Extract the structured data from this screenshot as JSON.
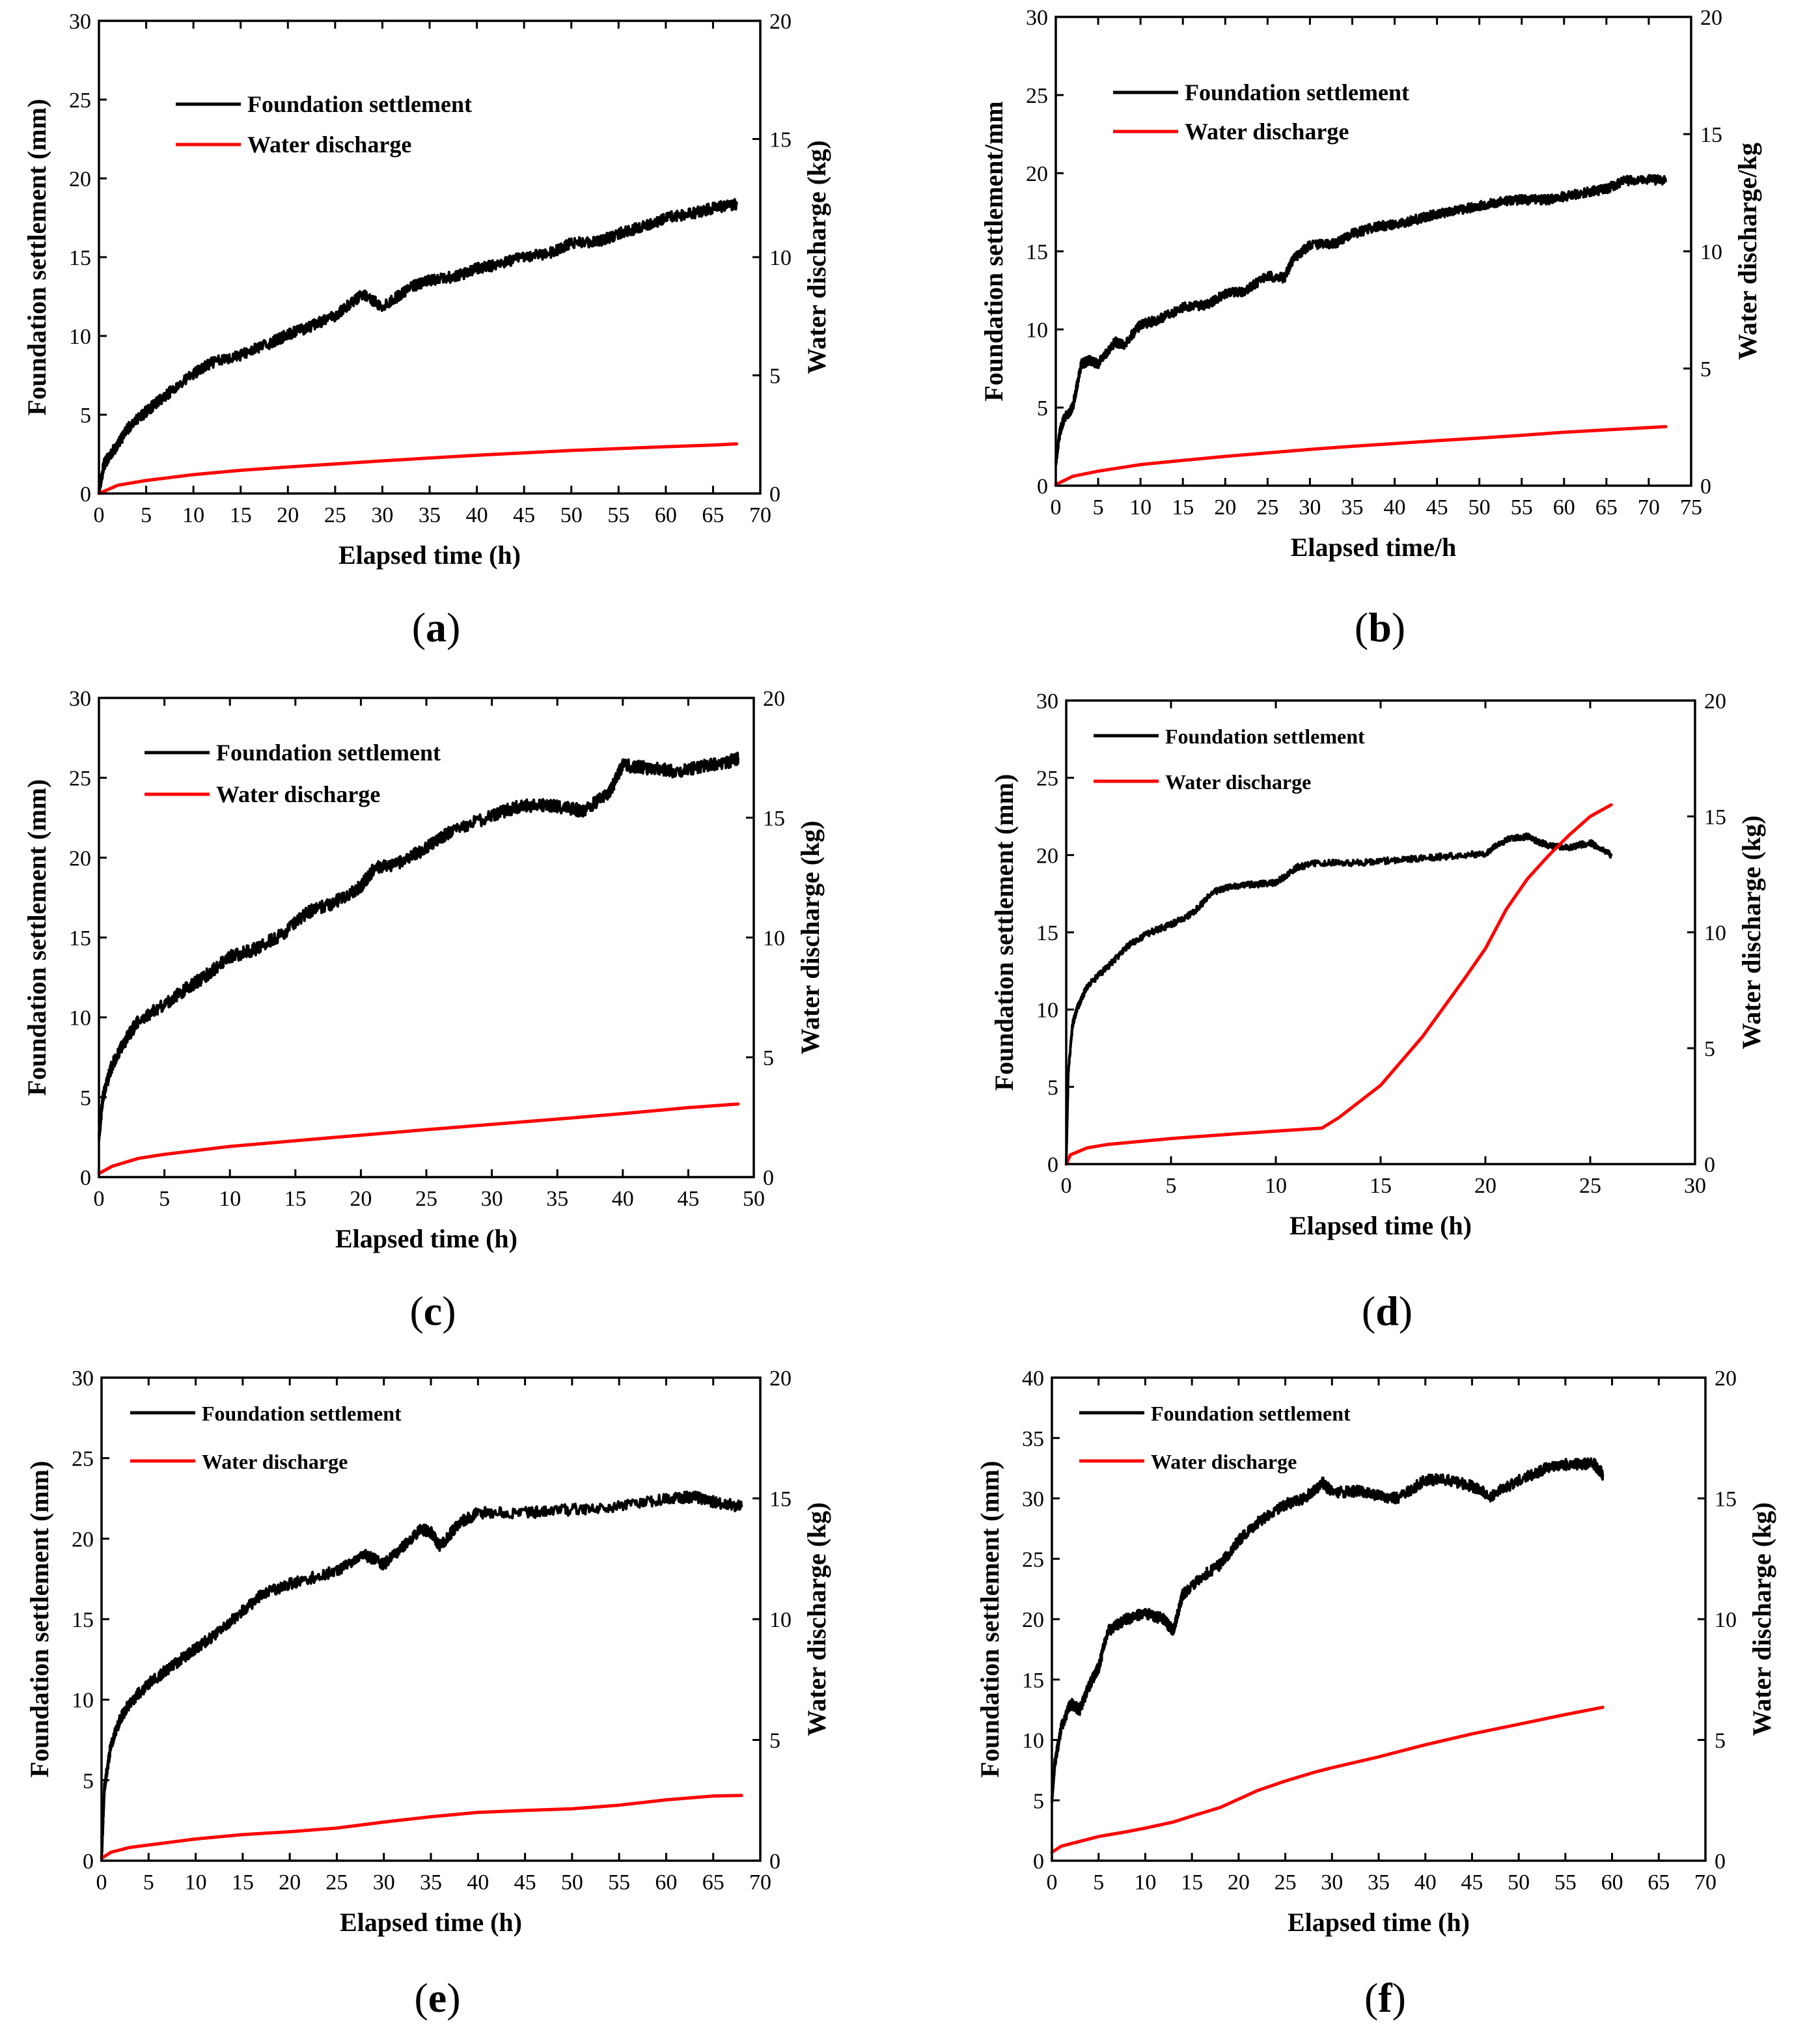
{
  "figure": {
    "background": "#ffffff",
    "colors": {
      "settlement": "#000000",
      "discharge": "#ff0000"
    }
  },
  "chart_data": [
    {
      "panel": "a",
      "caption": {
        "open": "(",
        "letter": "a",
        "close": ")"
      },
      "type": "line",
      "xlabel": "Elapsed time (h)",
      "ylabel_left": "Foundation settlement (mm)",
      "ylabel_right": "Water discharge (kg)",
      "xlim": [
        0,
        70
      ],
      "xticks": [
        0,
        5,
        10,
        15,
        20,
        25,
        30,
        35,
        40,
        45,
        50,
        55,
        60,
        65,
        70
      ],
      "ylim_left": [
        0,
        30
      ],
      "yticks_left": [
        0,
        5,
        10,
        15,
        20,
        25,
        30
      ],
      "ylim_right": [
        0,
        20
      ],
      "yticks_right": [
        0,
        5,
        10,
        15,
        20
      ],
      "legend": [
        "Foundation settlement",
        "Water discharge"
      ],
      "series": [
        {
          "name": "Foundation settlement",
          "axis": "left",
          "color": "#000000",
          "noise": 0.35,
          "x": [
            0,
            0.5,
            1,
            2,
            3,
            5,
            7,
            10,
            12,
            15,
            18,
            20,
            22,
            25,
            28,
            30,
            33,
            35,
            38,
            40,
            42,
            45,
            48,
            50,
            53,
            55,
            58,
            60,
            63,
            65,
            67.5
          ],
          "y": [
            0,
            1.8,
            2.3,
            3.1,
            4.1,
            5.2,
            6.2,
            7.6,
            8.3,
            8.8,
            9.5,
            10.1,
            10.5,
            11.3,
            12.7,
            11.8,
            13.1,
            13.5,
            13.8,
            14.3,
            14.5,
            15.0,
            15.3,
            15.9,
            16.0,
            16.5,
            17.0,
            17.5,
            17.8,
            18.1,
            18.4
          ]
        },
        {
          "name": "Water discharge",
          "axis": "right",
          "color": "#ff0000",
          "noise": 0,
          "x": [
            0,
            2,
            5,
            10,
            15,
            20,
            25,
            30,
            35,
            40,
            45,
            50,
            55,
            60,
            65,
            67.5
          ],
          "y": [
            0,
            0.35,
            0.55,
            0.8,
            0.98,
            1.12,
            1.25,
            1.38,
            1.5,
            1.62,
            1.72,
            1.82,
            1.9,
            1.98,
            2.05,
            2.1
          ]
        }
      ]
    },
    {
      "panel": "b",
      "caption": {
        "open": "(",
        "letter": "b",
        "close": ")"
      },
      "type": "line",
      "xlabel": "Elapsed time/h",
      "ylabel_left": "Foundation settlement/mm",
      "ylabel_right": "Water discharge/kg",
      "xlim": [
        0,
        75
      ],
      "xticks": [
        0,
        5,
        10,
        15,
        20,
        25,
        30,
        35,
        40,
        45,
        50,
        55,
        60,
        65,
        70,
        75
      ],
      "ylim_left": [
        0,
        30
      ],
      "yticks_left": [
        0,
        5,
        10,
        15,
        20,
        25,
        30
      ],
      "ylim_right": [
        0,
        20
      ],
      "yticks_right": [
        0,
        5,
        10,
        15,
        20
      ],
      "legend": [
        "Foundation settlement",
        "Water discharge"
      ],
      "series": [
        {
          "name": "Foundation settlement",
          "axis": "left",
          "color": "#000000",
          "noise": 0.3,
          "x": [
            0,
            0.5,
            1,
            2,
            3,
            4,
            5,
            7,
            8,
            10,
            12,
            15,
            18,
            20,
            22,
            25,
            27,
            28,
            30,
            33,
            35,
            38,
            40,
            43,
            45,
            48,
            50,
            53,
            55,
            58,
            60,
            63,
            65,
            67,
            70,
            72
          ],
          "y": [
            1.5,
            3.5,
            4.3,
            5.0,
            7.8,
            8.0,
            7.8,
            9.2,
            9.0,
            10.3,
            10.6,
            11.4,
            11.6,
            12.3,
            12.4,
            13.4,
            13.3,
            14.5,
            15.4,
            15.5,
            16.1,
            16.6,
            16.7,
            17.1,
            17.4,
            17.7,
            17.9,
            18.2,
            18.3,
            18.3,
            18.5,
            18.8,
            19.0,
            19.5,
            19.6,
            19.5
          ]
        },
        {
          "name": "Water discharge",
          "axis": "right",
          "color": "#ff0000",
          "noise": 0,
          "x": [
            0,
            2,
            5,
            10,
            15,
            20,
            25,
            30,
            35,
            40,
            45,
            50,
            55,
            60,
            65,
            70,
            72
          ],
          "y": [
            0.05,
            0.4,
            0.62,
            0.9,
            1.08,
            1.25,
            1.4,
            1.55,
            1.68,
            1.8,
            1.92,
            2.03,
            2.15,
            2.28,
            2.38,
            2.48,
            2.52
          ]
        }
      ]
    },
    {
      "panel": "c",
      "caption": {
        "open": "(",
        "letter": "c",
        "close": ")"
      },
      "type": "line",
      "xlabel": "Elapsed time (h)",
      "ylabel_left": "Foundation settlement (mm)",
      "ylabel_right": "Water discharge (kg)",
      "xlim": [
        0,
        50
      ],
      "xticks": [
        0,
        5,
        10,
        15,
        20,
        25,
        30,
        35,
        40,
        45,
        50
      ],
      "ylim_left": [
        0,
        30
      ],
      "yticks_left": [
        0,
        5,
        10,
        15,
        20,
        25,
        30
      ],
      "ylim_right": [
        0,
        20
      ],
      "yticks_right": [
        0,
        5,
        10,
        15,
        20
      ],
      "legend": [
        "Foundation settlement",
        "Water discharge"
      ],
      "series": [
        {
          "name": "Foundation settlement",
          "axis": "left",
          "color": "#000000",
          "noise": 0.4,
          "x": [
            0,
            0.3,
            1,
            2,
            3,
            5,
            7,
            8,
            10,
            12,
            14,
            16,
            18,
            20,
            21,
            23,
            25,
            27,
            30,
            32,
            34,
            36,
            37,
            39,
            40,
            42,
            44,
            46,
            48,
            48.8
          ],
          "y": [
            2.5,
            5.0,
            7.0,
            8.5,
            9.8,
            10.8,
            12.0,
            12.5,
            13.8,
            14.3,
            15.2,
            16.6,
            17.2,
            18.2,
            19.3,
            19.7,
            20.6,
            21.7,
            22.6,
            23.2,
            23.3,
            23.1,
            22.9,
            24.1,
            25.8,
            25.6,
            25.4,
            25.7,
            26.0,
            26.2
          ]
        },
        {
          "name": "Water discharge",
          "axis": "right",
          "color": "#ff0000",
          "noise": 0,
          "x": [
            0,
            1,
            3,
            5,
            10,
            15,
            20,
            25,
            30,
            35,
            40,
            45,
            48.8
          ],
          "y": [
            0.15,
            0.45,
            0.78,
            0.95,
            1.28,
            1.52,
            1.75,
            1.98,
            2.2,
            2.42,
            2.65,
            2.9,
            3.05
          ]
        }
      ]
    },
    {
      "panel": "d",
      "caption": {
        "open": "(",
        "letter": "d",
        "close": ")"
      },
      "type": "line",
      "xlabel": "Elapsed time (h)",
      "ylabel_left": "Foundation settlement (mm)",
      "ylabel_right": "Water discharge (kg)",
      "xlim": [
        0,
        30
      ],
      "xticks": [
        0,
        5,
        10,
        15,
        20,
        25,
        30
      ],
      "ylim_left": [
        0,
        30
      ],
      "yticks_left": [
        0,
        5,
        10,
        15,
        20,
        25,
        30
      ],
      "ylim_right": [
        0,
        20
      ],
      "yticks_right": [
        0,
        5,
        10,
        15,
        20
      ],
      "legend": [
        "Foundation settlement",
        "Water discharge"
      ],
      "series": [
        {
          "name": "Foundation settlement",
          "axis": "left",
          "color": "#000000",
          "noise": 0.2,
          "x": [
            0,
            0.1,
            0.3,
            0.5,
            1,
            2,
            3,
            4,
            5,
            6,
            7,
            8,
            9,
            10,
            11,
            12,
            14,
            16,
            18,
            20,
            21,
            22,
            23,
            24,
            25,
            26
          ],
          "y": [
            0,
            6.0,
            9.0,
            10.0,
            11.5,
            12.8,
            14.2,
            15.0,
            15.5,
            16.2,
            17.6,
            18.0,
            18.1,
            18.2,
            19.2,
            19.5,
            19.5,
            19.7,
            19.9,
            20.1,
            21.0,
            21.2,
            20.6,
            20.5,
            20.8,
            20.0
          ]
        },
        {
          "name": "Water discharge",
          "axis": "right",
          "color": "#ff0000",
          "noise": 0,
          "x": [
            0,
            0.2,
            1,
            2,
            5,
            8,
            10,
            12.2,
            13,
            15,
            17,
            19,
            20,
            21,
            22,
            23,
            24,
            25,
            26
          ],
          "y": [
            0,
            0.4,
            0.7,
            0.85,
            1.1,
            1.3,
            1.42,
            1.55,
            2.0,
            3.4,
            5.5,
            8.0,
            9.3,
            11.0,
            12.3,
            13.3,
            14.2,
            15.0,
            15.5
          ]
        }
      ]
    },
    {
      "panel": "e",
      "caption": {
        "open": "(",
        "letter": "e",
        "close": ")"
      },
      "type": "line",
      "xlabel": "Elapsed time (h)",
      "ylabel_left": "Foundation settlement (mm)",
      "ylabel_right": "Water discharge (kg)",
      "xlim": [
        0,
        70
      ],
      "xticks": [
        0,
        5,
        10,
        15,
        20,
        25,
        30,
        35,
        40,
        45,
        50,
        55,
        60,
        65,
        70
      ],
      "ylim_left": [
        0,
        30
      ],
      "yticks_left": [
        0,
        5,
        10,
        15,
        20,
        25,
        30
      ],
      "ylim_right": [
        0,
        20
      ],
      "yticks_right": [
        0,
        5,
        10,
        15,
        20
      ],
      "legend": [
        "Foundation settlement",
        "Water discharge"
      ],
      "series": [
        {
          "name": "Foundation settlement",
          "axis": "left",
          "color": "#000000",
          "noise": 0.35,
          "x": [
            0,
            0.3,
            1,
            2,
            3,
            5,
            8,
            10,
            12,
            15,
            17,
            20,
            25,
            28,
            30,
            32,
            34,
            35,
            36,
            38,
            40,
            45,
            50,
            55,
            60,
            63,
            65,
            68
          ],
          "y": [
            0,
            4.5,
            7.2,
            8.8,
            9.8,
            11.0,
            12.3,
            13.2,
            14.0,
            15.5,
            16.5,
            17.2,
            18.0,
            19.0,
            18.4,
            19.5,
            20.6,
            20.4,
            19.5,
            21.0,
            21.6,
            21.6,
            21.8,
            22.0,
            22.5,
            22.6,
            22.3,
            22.0
          ]
        },
        {
          "name": "Water discharge",
          "axis": "right",
          "color": "#ff0000",
          "noise": 0,
          "x": [
            0,
            1,
            3,
            5,
            10,
            15,
            20,
            25,
            30,
            35,
            40,
            45,
            50,
            55,
            60,
            65,
            68
          ],
          "y": [
            0.1,
            0.35,
            0.55,
            0.65,
            0.9,
            1.08,
            1.2,
            1.35,
            1.6,
            1.82,
            2.0,
            2.08,
            2.15,
            2.3,
            2.52,
            2.68,
            2.7
          ]
        }
      ]
    },
    {
      "panel": "f",
      "caption": {
        "open": "(",
        "letter": "f",
        "close": ")"
      },
      "type": "line",
      "xlabel": "Elapsed time (h)",
      "ylabel_left": "Foundation settlement (mm)",
      "ylabel_right": "Water discharge (kg)",
      "xlim": [
        0,
        70
      ],
      "xticks": [
        0,
        5,
        10,
        15,
        20,
        25,
        30,
        35,
        40,
        45,
        50,
        55,
        60,
        65,
        70
      ],
      "ylim_left": [
        0,
        40
      ],
      "yticks_left": [
        0,
        5,
        10,
        15,
        20,
        25,
        30,
        35,
        40
      ],
      "ylim_right": [
        0,
        20
      ],
      "yticks_right": [
        0,
        5,
        10,
        15,
        20
      ],
      "legend": [
        "Foundation settlement",
        "Water discharge"
      ],
      "series": [
        {
          "name": "Foundation settlement",
          "axis": "left",
          "color": "#000000",
          "noise": 0.45,
          "x": [
            0,
            0.3,
            1,
            2,
            3,
            4,
            5,
            6,
            8,
            10,
            12,
            13,
            14,
            16,
            18,
            20,
            22,
            25,
            27,
            29,
            30,
            33,
            35,
            37,
            40,
            42,
            45,
            47,
            50,
            53,
            55,
            58,
            59
          ],
          "y": [
            5.0,
            8.0,
            11.0,
            13.0,
            12.5,
            14.5,
            16.0,
            19.0,
            20.0,
            20.5,
            20.0,
            19.0,
            22.0,
            23.5,
            24.5,
            26.5,
            28.0,
            29.5,
            30.0,
            31.3,
            30.5,
            30.6,
            30.2,
            30.0,
            31.5,
            31.6,
            31.0,
            30.2,
            31.5,
            32.5,
            32.8,
            32.9,
            32.0
          ]
        },
        {
          "name": "Water discharge",
          "axis": "right",
          "color": "#ff0000",
          "noise": 0,
          "x": [
            0,
            1,
            3,
            5,
            8,
            10,
            13,
            15,
            18,
            20,
            22,
            25,
            28,
            30,
            35,
            40,
            45,
            50,
            55,
            59
          ],
          "y": [
            0.35,
            0.6,
            0.8,
            1.0,
            1.2,
            1.35,
            1.6,
            1.85,
            2.2,
            2.55,
            2.9,
            3.3,
            3.65,
            3.85,
            4.3,
            4.8,
            5.25,
            5.65,
            6.05,
            6.35
          ]
        }
      ]
    }
  ]
}
